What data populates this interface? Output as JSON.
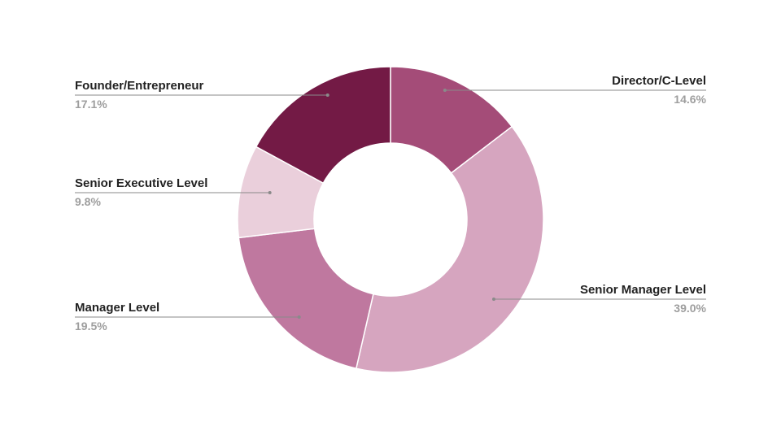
{
  "chart_data": {
    "type": "pie",
    "donut": true,
    "title": "",
    "legend": "none",
    "slices": [
      {
        "name": "Director/C-Level",
        "value": 14.6,
        "label": "14.6%",
        "color": "#a44c78"
      },
      {
        "name": "Senior Manager Level",
        "value": 39.0,
        "label": "39.0%",
        "color": "#d6a5bf"
      },
      {
        "name": "Manager Level",
        "value": 19.5,
        "label": "19.5%",
        "color": "#bf789f"
      },
      {
        "name": "Senior Executive Level",
        "value": 9.8,
        "label": "9.8%",
        "color": "#eacfdb"
      },
      {
        "name": "Founder/Entrepreneur",
        "value": 17.1,
        "label": "17.1%",
        "color": "#731a45"
      }
    ]
  }
}
